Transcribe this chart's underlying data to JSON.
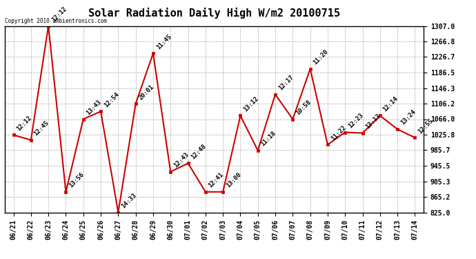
{
  "title": "Solar Radiation Daily High W/m2 20100715",
  "copyright": "Copyright 2010 ambientronics.com",
  "x_labels": [
    "06/21",
    "06/22",
    "06/23",
    "06/24",
    "06/25",
    "06/26",
    "06/27",
    "06/28",
    "06/29",
    "06/30",
    "07/01",
    "07/02",
    "07/03",
    "07/04",
    "07/05",
    "07/06",
    "07/07",
    "07/08",
    "07/09",
    "07/10",
    "07/11",
    "07/12",
    "07/13",
    "07/14"
  ],
  "y_values": [
    1025,
    1012,
    1307,
    878,
    1066,
    1086,
    825,
    1106,
    1236,
    930,
    952,
    878,
    878,
    1075,
    985,
    1130,
    1066,
    1196,
    1000,
    1032,
    1030,
    1075,
    1040,
    1018
  ],
  "point_labels": [
    "12:12",
    "12:45",
    "12:12",
    "13:56",
    "13:43",
    "12:54",
    "14:33",
    "20:01",
    "11:45",
    "12:43",
    "12:48",
    "12:41",
    "13:00",
    "13:12",
    "11:18",
    "12:17",
    "10:58",
    "11:20",
    "11:22",
    "12:23",
    "13:13",
    "12:14",
    "13:24",
    "12:55"
  ],
  "ylim_min": 825.0,
  "ylim_max": 1307.0,
  "yticks": [
    825.0,
    865.2,
    905.3,
    945.5,
    985.7,
    1025.8,
    1066.0,
    1106.2,
    1146.3,
    1186.5,
    1226.7,
    1266.8,
    1307.0
  ],
  "line_color": "#cc0000",
  "marker_color": "#cc0000",
  "bg_color": "#ffffff",
  "grid_color": "#aaaaaa",
  "title_fontsize": 11,
  "label_fontsize": 7,
  "point_label_fontsize": 6.5
}
